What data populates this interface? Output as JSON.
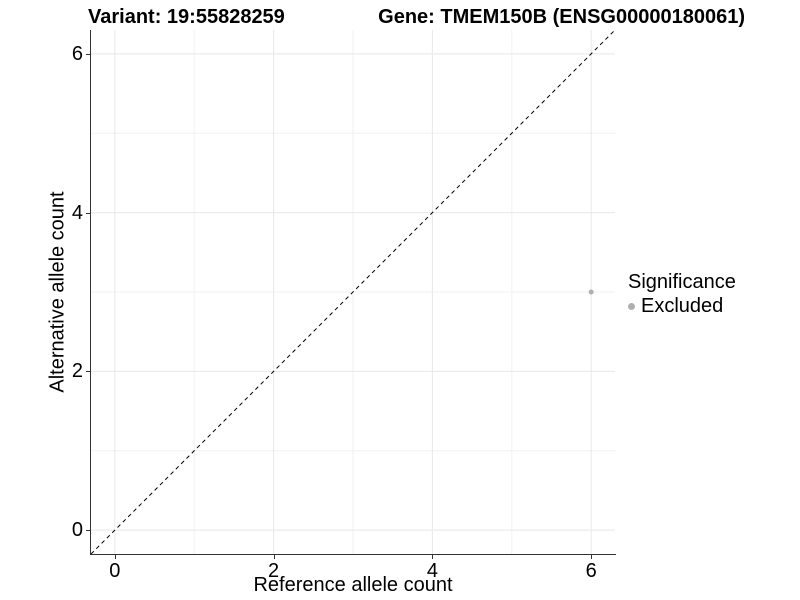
{
  "header": {
    "title_left": "Variant: 19:55828259",
    "title_right": "Gene: TMEM150B (ENSG00000180061)"
  },
  "chart_data": {
    "type": "scatter",
    "title": "Variant: 19:55828259  Gene: TMEM150B (ENSG00000180061)",
    "xlabel": "Reference allele count",
    "ylabel": "Alternative allele count",
    "xlim": [
      -0.3,
      6.3
    ],
    "ylim": [
      -0.3,
      6.3
    ],
    "x_ticks": [
      0,
      2,
      4,
      6
    ],
    "y_ticks": [
      0,
      2,
      4,
      6
    ],
    "minor_gridlines_x": [
      1,
      3,
      5
    ],
    "minor_gridlines_y": [
      1,
      3,
      5
    ],
    "grid": true,
    "reference_line": {
      "type": "identity",
      "style": "dashed",
      "color": "#000000"
    },
    "points": [
      {
        "x": 6,
        "y": 3,
        "series": "Excluded"
      }
    ],
    "series_colors": {
      "Excluded": "#b0b0b0"
    },
    "legend": {
      "title": "Significance",
      "position": "right",
      "items": [
        {
          "label": "Excluded",
          "color": "#b0b0b0"
        }
      ]
    },
    "colors": {
      "axis_line": "#333333",
      "major_grid": "#e8e8e8",
      "minor_grid": "#f2f2f2"
    }
  }
}
